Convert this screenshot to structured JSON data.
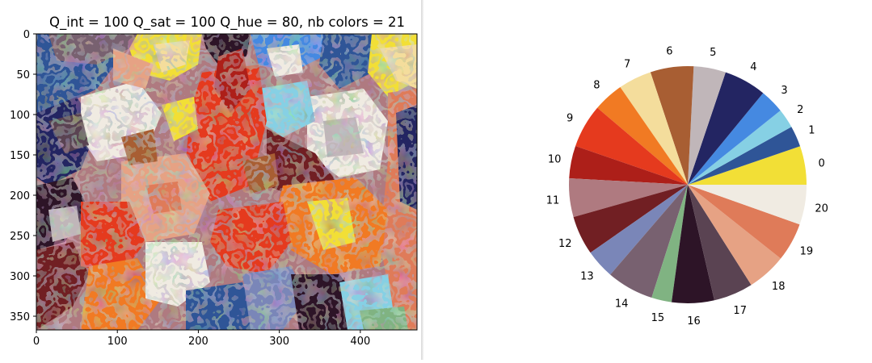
{
  "chart_data": [
    {
      "type": "heatmap",
      "title": "Q_int = 100 Q_sat = 100 Q_hue = 80, nb colors = 21",
      "x_ticks": [
        0,
        100,
        200,
        300,
        400
      ],
      "y_ticks": [
        0,
        50,
        100,
        150,
        200,
        250,
        300,
        350
      ],
      "xlim": [
        0,
        470
      ],
      "ylim": [
        0,
        367
      ],
      "palette_indices_shown": "0-20"
    },
    {
      "type": "pie",
      "labels": [
        "0",
        "1",
        "2",
        "3",
        "4",
        "5",
        "6",
        "7",
        "8",
        "9",
        "10",
        "11",
        "12",
        "13",
        "14",
        "15",
        "16",
        "17",
        "18",
        "19",
        "20"
      ],
      "values": [
        9.4,
        5.1,
        4.7,
        5.9,
        10.3,
        7.8,
        10.5,
        8.1,
        7.4,
        10.6,
        7.9,
        9.4,
        9.5,
        7.1,
        11.4,
        4.9,
        10.3,
        9.6,
        9.5,
        9.4,
        9.7
      ],
      "colors": [
        "#f2df36",
        "#2f5597",
        "#86d0e4",
        "#4589e1",
        "#232562",
        "#c0b6b9",
        "#a85e33",
        "#f4dd9c",
        "#f17a23",
        "#e53a1e",
        "#ad1f19",
        "#af7a80",
        "#711f23",
        "#7a86b8",
        "#786170",
        "#80b382",
        "#2d1427",
        "#5a4352",
        "#e6a284",
        "#df7b59",
        "#f0ebe2"
      ],
      "start_angle_deg": 0,
      "direction": "counterclockwise"
    }
  ]
}
